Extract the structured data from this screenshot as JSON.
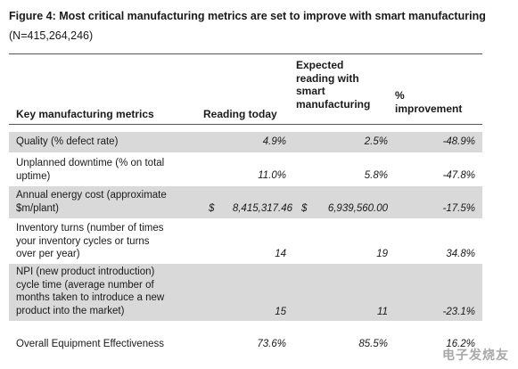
{
  "title": "Figure 4: Most critical manufacturing metrics are set to improve with smart manufacturing",
  "subtitle": "(N=415,264,246)",
  "headers": {
    "metric": "Key manufacturing metrics",
    "today": "Reading today",
    "expected_1": "Expected",
    "expected_2": "reading with",
    "expected_3": "smart",
    "expected_4": "manufacturing",
    "improvement_1": "%",
    "improvement_2": "improvement"
  },
  "rows": [
    {
      "metric_lines": [
        "Quality (% defect rate)"
      ],
      "today": "4.9%",
      "expected": "2.5%",
      "improvement": "-48.9%"
    },
    {
      "metric_lines": [
        "Unplanned downtime (% on total",
        "uptime)"
      ],
      "today": "11.0%",
      "expected": "5.8%",
      "improvement": "-47.8%"
    },
    {
      "metric_lines": [
        "Annual energy cost (approximate",
        "$m/plant)"
      ],
      "today_currency": "$",
      "today": "8,415,317.46",
      "expected_currency": "$",
      "expected": "6,939,560.00",
      "improvement": "-17.5%"
    },
    {
      "metric_lines": [
        "Inventory turns (number of times",
        "your inventory cycles or turns",
        "over per year)"
      ],
      "today": "14",
      "expected": "19",
      "improvement": "34.8%"
    },
    {
      "metric_lines": [
        "NPI (new product introduction)",
        "cycle time (average number of",
        "months taken to introduce a new",
        "product into the market)"
      ],
      "today": "15",
      "expected": "11",
      "improvement": "-23.1%"
    },
    {
      "metric_lines": [
        "Overall Equipment Effectiveness"
      ],
      "today": "73.6%",
      "expected": "85.5%",
      "improvement": "16.2%"
    }
  ],
  "watermark": "电子发烧友"
}
